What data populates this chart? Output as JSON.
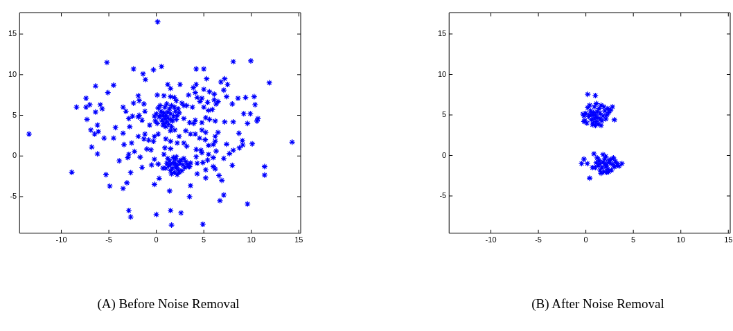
{
  "chart_data": [
    {
      "type": "scatter",
      "color": "#0000ff",
      "marker": "cross",
      "grid": false,
      "xlim": [
        -14.4,
        15.2
      ],
      "ylim": [
        -9.5,
        17.6
      ],
      "xticks": [
        -10,
        -5,
        0,
        5,
        10,
        15
      ],
      "yticks": [
        -5,
        0,
        5,
        10,
        15
      ],
      "annotations": [
        "(A) Before Noise Removal"
      ],
      "x": [
        0.14,
        -5.2,
        9.95,
        8.1,
        -2.4,
        -0.3,
        0.55,
        4.2,
        5.0,
        -1.4,
        -1.15,
        5.3,
        7.2,
        11.9,
        -6.4,
        -4.5,
        1.2,
        2.5,
        4.2,
        6.8,
        7.5,
        1.5,
        5.0,
        7.1,
        3.9,
        -5.1,
        -7.4,
        0.1,
        0.8,
        1.5,
        3.4,
        4.1,
        5.6,
        6.1,
        7.4,
        8.6,
        9.4,
        10.3,
        -1.9,
        4.8,
        4.3,
        1.9,
        -8.4,
        -7.4,
        -7.0,
        -5.9,
        -5.7,
        -6.4,
        -3.5,
        -3.2,
        -2.4,
        -1.8,
        -1.3,
        -1.2,
        2.9,
        3.8,
        5.0,
        5.5,
        5.9,
        6.3,
        6.5,
        8.0,
        10.4,
        4.6,
        5.4,
        6.1,
        2.7,
        3.2,
        2.1,
        -7.3,
        -6.2,
        -6.9,
        -6.5,
        -6.1,
        -5.5,
        -4.5,
        -4.3,
        -6.8,
        -6.2,
        -3.5,
        -3.4,
        -2.9,
        -2.5,
        -1.8,
        -1.9,
        -1.5,
        -2.8,
        -2.6,
        -1.9,
        -1.3,
        -1.2,
        -0.8,
        -0.3,
        -0.2,
        0.2,
        -0.7,
        -1.0,
        -0.55,
        -2.3,
        -2.9,
        -3.0,
        -3.9,
        -1.7,
        -0.2,
        -1.5,
        -0.5,
        0.2,
        0.7,
        2.9,
        3.5,
        4.1,
        3.95,
        4.8,
        5.2,
        5.6,
        6.2,
        7.2,
        8.1,
        9.2,
        9.9,
        9.6,
        10.7,
        10.6,
        8.7,
        9.06,
        9.1,
        8.75,
        10.1,
        14.3,
        7.4,
        7.7,
        8.1,
        8.0,
        11.4,
        11.4,
        7.1,
        6.5,
        6.2,
        6.2,
        6.0,
        5.5,
        5.15,
        5.2,
        4.8,
        4.56,
        4.1,
        3.6,
        3.1,
        3.2,
        2.9,
        2.4,
        2.2,
        1.5,
        1.0,
        0.9,
        0.8,
        1.5,
        1.5,
        1.95,
        4.2,
        4.7,
        4.8,
        5.5,
        6.3,
        6.0,
        5.4,
        4.9,
        4.3,
        3.6,
        4.2,
        5.2,
        5.2,
        6.0,
        6.2,
        6.6,
        6.9,
        7.1,
        6.7,
        9.6,
        4.3,
        3.4,
        3.6,
        3.5,
        1.4,
        1.5,
        2.6,
        1.6,
        4.9,
        0.0,
        -0.2,
        0.3,
        -2.7,
        -3.1,
        -3.5,
        -4.9,
        -5.3,
        -8.9,
        -13.4,
        -2.9,
        -2.7,
        1.0,
        0.8,
        1.2,
        0.5,
        1.5,
        0.3,
        1.8,
        0.9,
        1.1,
        0.6,
        1.4,
        0.2,
        2.0,
        2.2,
        1.7,
        0.0,
        -0.2,
        0.4,
        1.0,
        1.3,
        0.7,
        2.1,
        2.3,
        1.6,
        0.9,
        1.2,
        0.7,
        1.5,
        0.4,
        1.9,
        -0.1,
        2.4,
        1.1,
        0.8,
        1.6,
        0.1,
        2.0,
        1.8,
        2.2,
        1.5,
        2.5,
        2.0,
        1.7,
        2.3,
        2.8,
        1.3,
        1.9,
        2.6,
        2.1,
        1.4,
        3.0,
        3.3,
        1.1,
        1.6,
        2.4,
        2.9,
        1.0,
        3.5,
        2.7,
        2.1,
        1.8,
        2.4,
        1.5,
        3.1,
        2.2,
        1.2
      ],
      "values": [
        16.5,
        11.5,
        11.7,
        11.6,
        10.7,
        10.6,
        11.0,
        10.7,
        10.7,
        10.1,
        9.4,
        9.5,
        9.5,
        9.0,
        8.6,
        8.7,
        8.8,
        8.8,
        8.8,
        9.1,
        8.8,
        8.3,
        8.2,
        8.1,
        8.4,
        7.8,
        7.1,
        7.5,
        7.4,
        7.3,
        7.5,
        7.8,
        7.9,
        7.6,
        7.3,
        7.1,
        7.2,
        7.3,
        7.4,
        7.1,
        7.2,
        7.2,
        6.0,
        6.0,
        6.3,
        6.3,
        5.8,
        5.4,
        6.0,
        5.5,
        6.5,
        6.8,
        6.4,
        5.5,
        6.2,
        6.0,
        6.0,
        5.6,
        5.7,
        6.4,
        6.7,
        6.4,
        6.3,
        6.7,
        6.6,
        6.9,
        6.5,
        6.2,
        6.8,
        4.5,
        3.8,
        3.2,
        2.7,
        3.0,
        2.2,
        2.2,
        3.5,
        1.1,
        0.25,
        2.8,
        1.4,
        4.6,
        4.9,
        5.0,
        4.8,
        4.4,
        3.6,
        1.6,
        2.4,
        2.1,
        2.7,
        1.95,
        1.8,
        2.4,
        2.7,
        3.8,
        0.85,
        0.75,
        0.55,
        0.2,
        -0.2,
        -0.6,
        -0.15,
        -0.4,
        -1.4,
        -1.1,
        -1.0,
        -1.5,
        4.6,
        4.1,
        4.4,
        4.0,
        4.1,
        4.7,
        4.5,
        4.3,
        4.2,
        4.2,
        5.2,
        5.2,
        4.0,
        4.6,
        4.3,
        2.8,
        1.9,
        1.35,
        1.0,
        1.5,
        1.7,
        1.45,
        0.3,
        0.7,
        -1.15,
        -1.3,
        -2.35,
        -0.3,
        2.9,
        2.4,
        1.8,
        1.4,
        1.3,
        2.0,
        2.9,
        3.2,
        2.2,
        2.7,
        2.7,
        3.1,
        1.2,
        1.6,
        2.4,
        1.6,
        1.8,
        2.1,
        1.0,
        0.2,
        0.9,
        3.1,
        3.2,
        0.8,
        0.7,
        0.4,
        0.2,
        0.6,
        -0.2,
        -0.5,
        -0.8,
        -0.9,
        -0.85,
        -0.1,
        -1.7,
        -2.7,
        -1.3,
        -1.6,
        -2.4,
        -3.0,
        -4.8,
        -5.5,
        -5.9,
        -2.2,
        -1.3,
        -3.65,
        -5.0,
        -4.3,
        -6.7,
        -7.0,
        -8.5,
        -8.4,
        -7.2,
        -3.5,
        -2.75,
        -2.05,
        -3.3,
        -4.0,
        -3.7,
        -2.3,
        -2.0,
        2.7,
        -6.7,
        -7.5,
        5.0,
        5.3,
        4.7,
        5.5,
        5.2,
        4.8,
        4.9,
        6.0,
        4.2,
        4.4,
        5.8,
        5.9,
        5.5,
        5.0,
        4.3,
        5.2,
        4.9,
        6.2,
        3.6,
        3.9,
        3.8,
        4.5,
        5.8,
        6.2,
        4.6,
        5.4,
        5.0,
        4.5,
        5.0,
        6.0,
        4.3,
        5.3,
        6.4,
        4.0,
        3.6,
        4.0,
        -1.0,
        -0.8,
        -1.2,
        -1.0,
        -0.9,
        -0.4,
        -1.5,
        -1.7,
        -1.1,
        -1.2,
        -2.0,
        -0.5,
        -0.1,
        -0.6,
        -1.4,
        -1.0,
        -0.9,
        -2.2,
        -2.0,
        -0.3,
        -1.5,
        -1.3,
        -1.8,
        -1.4,
        -0.2,
        -0.7,
        -1.8,
        -0.7,
        -2.3,
        -0.3
      ]
    },
    {
      "type": "scatter",
      "color": "#0000ff",
      "marker": "cross",
      "grid": false,
      "xlim": [
        -14.4,
        15.2
      ],
      "ylim": [
        -9.6,
        17.6
      ],
      "xticks": [
        -10,
        -5,
        0,
        5,
        10,
        15
      ],
      "yticks": [
        -5,
        0,
        5,
        10,
        15
      ],
      "annotations": [
        "(B) After Noise Removal"
      ],
      "x": [
        0.2,
        1.0,
        3.0,
        2.8,
        -0.3,
        -0.2,
        -0.45,
        -0.2,
        0.85,
        0.4,
        3.8,
        3.3,
        0.15,
        1.0,
        0.8,
        1.2,
        0.5,
        1.5,
        0.3,
        1.8,
        0.9,
        1.1,
        0.6,
        1.4,
        0.2,
        2.0,
        2.2,
        1.7,
        0.0,
        -0.2,
        0.4,
        1.0,
        1.3,
        0.7,
        2.1,
        2.3,
        1.6,
        0.9,
        1.2,
        0.7,
        1.5,
        0.4,
        1.9,
        -0.1,
        2.4,
        1.1,
        0.8,
        1.6,
        0.1,
        2.6,
        2.0,
        1.8,
        2.2,
        1.5,
        2.5,
        2.0,
        1.7,
        2.3,
        2.8,
        1.3,
        1.9,
        2.6,
        2.1,
        1.4,
        3.0,
        3.3,
        1.1,
        1.6,
        2.4,
        2.9,
        1.0,
        3.5,
        2.7,
        2.1,
        1.8,
        2.4,
        1.5,
        3.1,
        2.2,
        1.2,
        0.7
      ],
      "values": [
        7.55,
        7.4,
        4.4,
        6.0,
        5.1,
        4.2,
        -1.0,
        -0.45,
        0.2,
        -2.8,
        -1.0,
        -1.2,
        -1.0,
        5.0,
        5.3,
        4.7,
        5.5,
        5.2,
        4.8,
        4.9,
        6.0,
        4.2,
        4.4,
        5.8,
        5.9,
        5.5,
        5.0,
        4.3,
        5.2,
        4.9,
        6.2,
        3.7,
        3.9,
        3.8,
        4.5,
        5.8,
        6.2,
        4.6,
        5.4,
        5.0,
        4.5,
        5.0,
        6.0,
        4.3,
        5.3,
        6.4,
        4.0,
        3.7,
        4.0,
        5.6,
        -1.0,
        -0.8,
        -1.2,
        -1.0,
        -0.9,
        -0.4,
        -1.5,
        -1.7,
        -1.1,
        -1.2,
        -2.0,
        -0.5,
        -0.1,
        -0.6,
        -1.4,
        -1.0,
        -0.9,
        -2.2,
        -2.0,
        -0.3,
        -1.5,
        -1.3,
        -1.8,
        -1.4,
        0.1,
        -0.7,
        -1.8,
        -0.7,
        -2.1,
        -0.3,
        -1.5
      ]
    }
  ]
}
